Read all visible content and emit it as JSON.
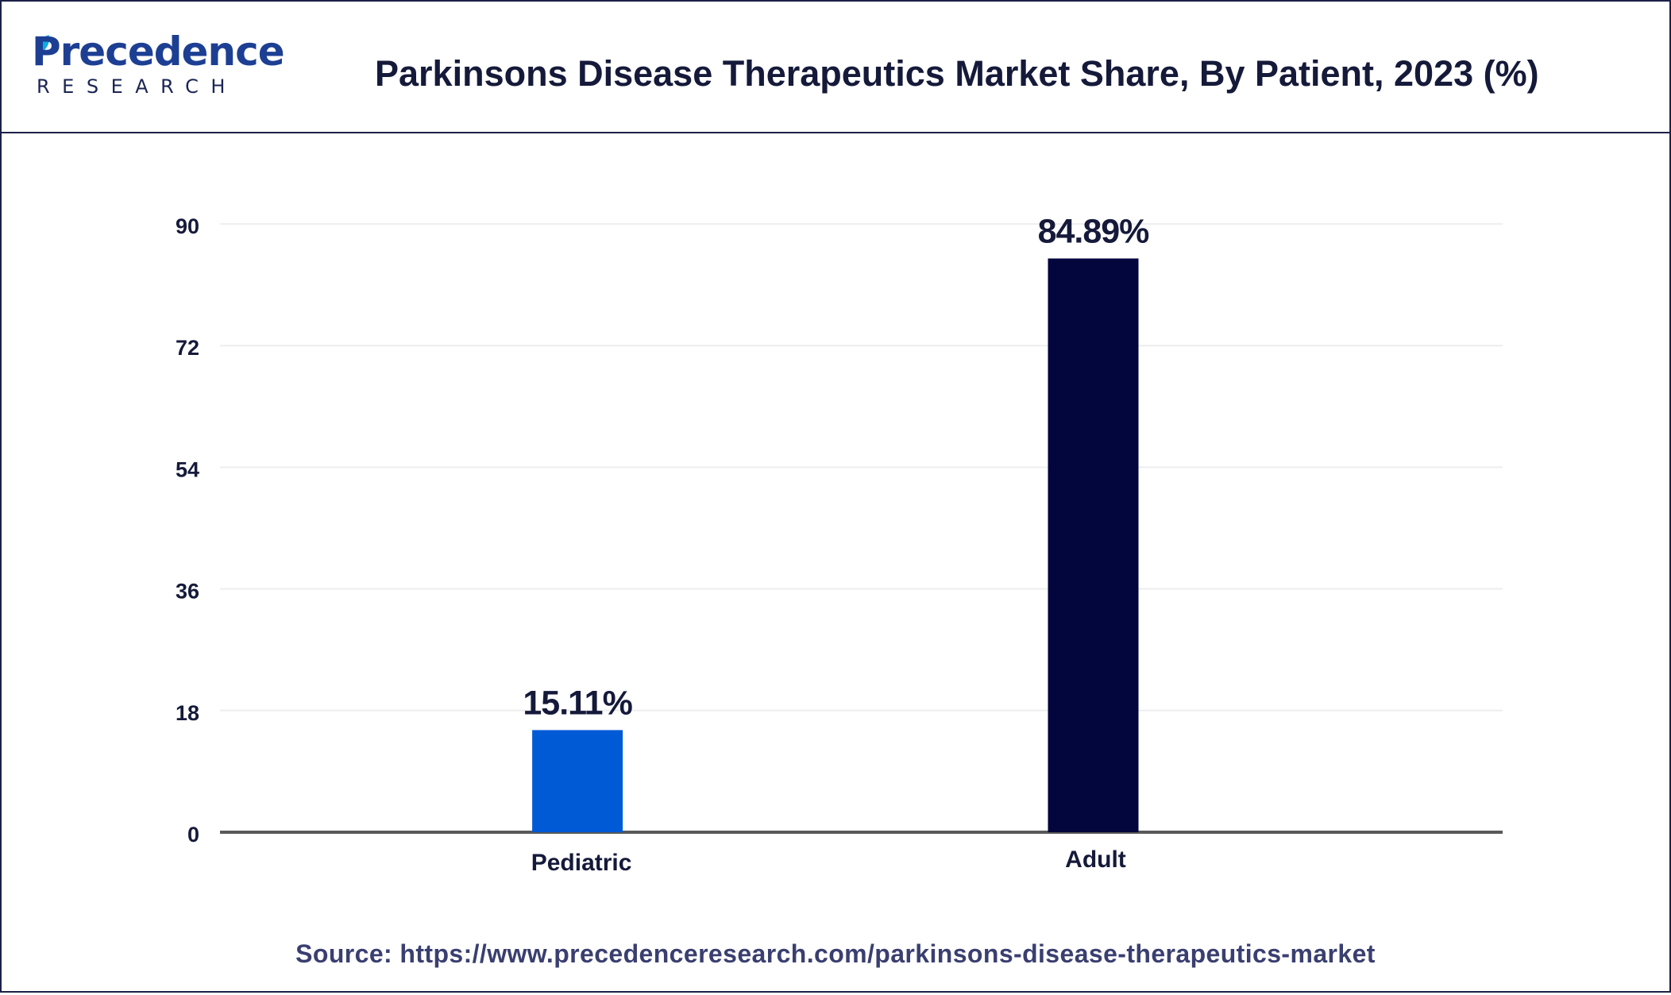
{
  "header": {
    "logo": {
      "brand": "Precedence",
      "sub": "RESEARCH"
    },
    "title": "Parkinsons Disease Therapeutics Market Share, By Patient, 2023 (%)"
  },
  "footer": {
    "source": "Source: https://www.precedenceresearch.com/parkinsons-disease-therapeutics-market"
  },
  "chart_data": {
    "type": "bar",
    "categories": [
      "Pediatric",
      "Adult"
    ],
    "values": [
      15.11,
      84.89
    ],
    "data_labels": [
      "15.11%",
      "84.89%"
    ],
    "bar_colors": [
      "#005ad6",
      "#03053d"
    ],
    "yticks": [
      0,
      18,
      36,
      54,
      72,
      90
    ],
    "ylim": [
      0,
      90
    ],
    "grid": true,
    "legend": "none",
    "xlabel": "",
    "ylabel": "",
    "title": ""
  }
}
